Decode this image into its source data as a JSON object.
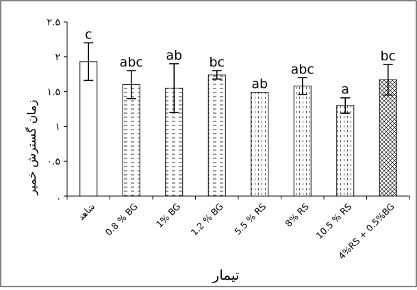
{
  "chart_data": {
    "type": "bar",
    "title": "",
    "xlabel": "تیمار",
    "ylabel": "زمان گسترش خمیر",
    "ylim": [
      0,
      2.5
    ],
    "yticks": [
      {
        "value": 0,
        "label": "."
      },
      {
        "value": 0.5,
        "label": "۰.۵"
      },
      {
        "value": 1,
        "label": "۱"
      },
      {
        "value": 1.5,
        "label": "۱.۵"
      },
      {
        "value": 2,
        "label": "۲"
      },
      {
        "value": 2.5,
        "label": "۲.۵"
      }
    ],
    "grid": false,
    "legend": "none",
    "categories": [
      "شاهد",
      "0.8 % BG",
      "1% BG",
      "1.2 % BG",
      "5.5 % RS",
      "8% RS",
      "10.5 % RS",
      "4%RS + 0.5%BG"
    ],
    "values": [
      1.93,
      1.6,
      1.55,
      1.74,
      1.49,
      1.58,
      1.3,
      1.67
    ],
    "errors": [
      0.27,
      0.2,
      0.35,
      0.06,
      0.0,
      0.12,
      0.11,
      0.22
    ],
    "significance_letters": [
      "c",
      "abc",
      "ab",
      "bc",
      "ab",
      "abc",
      "a",
      "bc"
    ],
    "patterns": [
      "none",
      "dashes",
      "dashes",
      "dashes",
      "dots",
      "dots",
      "dots",
      "crosshatch"
    ],
    "colors": {
      "bar_fill": "#ffffff",
      "bar_stroke": "#000000",
      "axis": "#000000"
    }
  }
}
